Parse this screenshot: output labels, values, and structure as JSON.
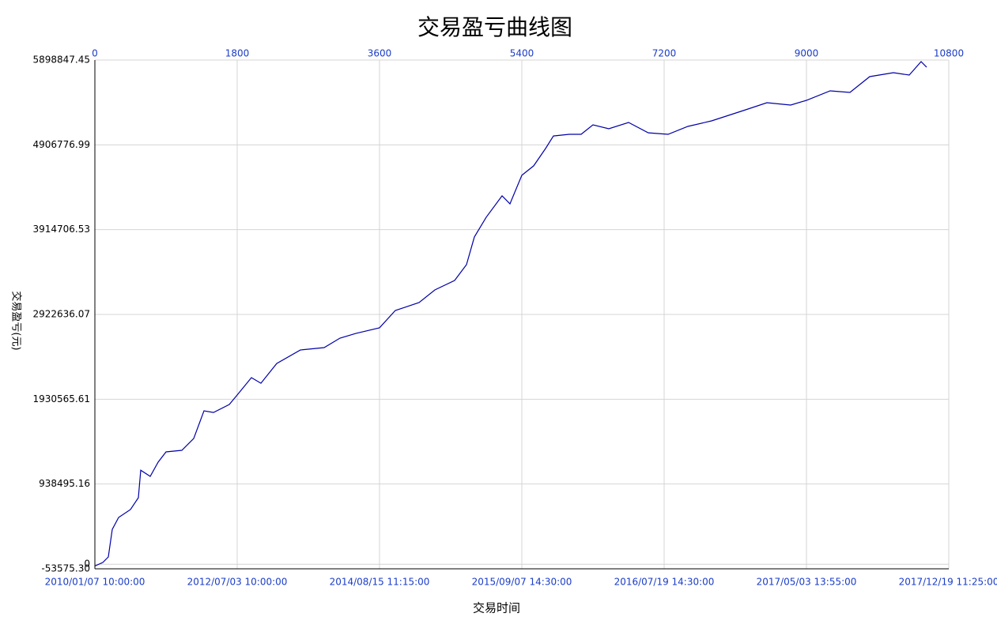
{
  "chart_data": {
    "type": "line",
    "title": "交易盈亏曲线图",
    "xlabel": "交易时间",
    "ylabel": "交易盈亏(元)",
    "xlim": [
      0,
      10800
    ],
    "xticks": [
      0,
      1800,
      3600,
      5400,
      7200,
      9000,
      10800
    ],
    "x_date_labels": [
      "2010/01/07 10:00:00",
      "2012/07/03 10:00:00",
      "2014/08/15 11:15:00",
      "2015/09/07 14:30:00",
      "2016/07/19 14:30:00",
      "2017/05/03 13:55:00",
      "2017/12/19 11:25:00"
    ],
    "ylim": [
      -53575.3,
      5898847.45
    ],
    "yticks": [
      {
        "value": -53575.3,
        "label": "-53575.30"
      },
      0,
      {
        "value": 938495.16,
        "label": "938495.16"
      },
      {
        "value": 1930565.61,
        "label": "1930565.61"
      },
      {
        "value": 2922636.07,
        "label": "2922636.07"
      },
      {
        "value": 3914706.53,
        "label": "3914706.53"
      },
      {
        "value": 4906776.99,
        "label": "4906776.99"
      },
      {
        "value": 5898847.45,
        "label": "5898847.45"
      }
    ],
    "grid": true,
    "x": [
      0,
      100,
      170,
      220,
      300,
      450,
      550,
      580,
      700,
      800,
      900,
      1100,
      1250,
      1380,
      1500,
      1700,
      1800,
      1980,
      2100,
      2300,
      2600,
      2900,
      3100,
      3300,
      3600,
      3800,
      4100,
      4300,
      4550,
      4700,
      4800,
      4950,
      5150,
      5250,
      5400,
      5550,
      5700,
      5800,
      6000,
      6150,
      6300,
      6500,
      6750,
      7000,
      7250,
      7500,
      7800,
      8200,
      8500,
      8800,
      9000,
      9300,
      9550,
      9800,
      10100,
      10300,
      10450,
      10520
    ],
    "series": [
      {
        "color": "#0000a8",
        "values": [
          -20000,
          20000,
          85000,
          408000,
          547000,
          640000,
          778000,
          1100000,
          1028000,
          1194000,
          1314000,
          1333000,
          1471000,
          1795000,
          1776000,
          1869000,
          1980000,
          2183000,
          2118000,
          2349000,
          2507000,
          2534000,
          2645000,
          2700000,
          2766000,
          2969000,
          3061000,
          3209000,
          3320000,
          3505000,
          3829000,
          4060000,
          4310000,
          4217000,
          4550000,
          4661000,
          4864000,
          5011000,
          5030000,
          5030000,
          5141000,
          5095000,
          5169000,
          5048000,
          5030000,
          5122000,
          5187000,
          5307000,
          5400000,
          5372000,
          5427000,
          5538000,
          5520000,
          5705000,
          5751000,
          5723000,
          5880000,
          5815000
        ]
      }
    ]
  }
}
